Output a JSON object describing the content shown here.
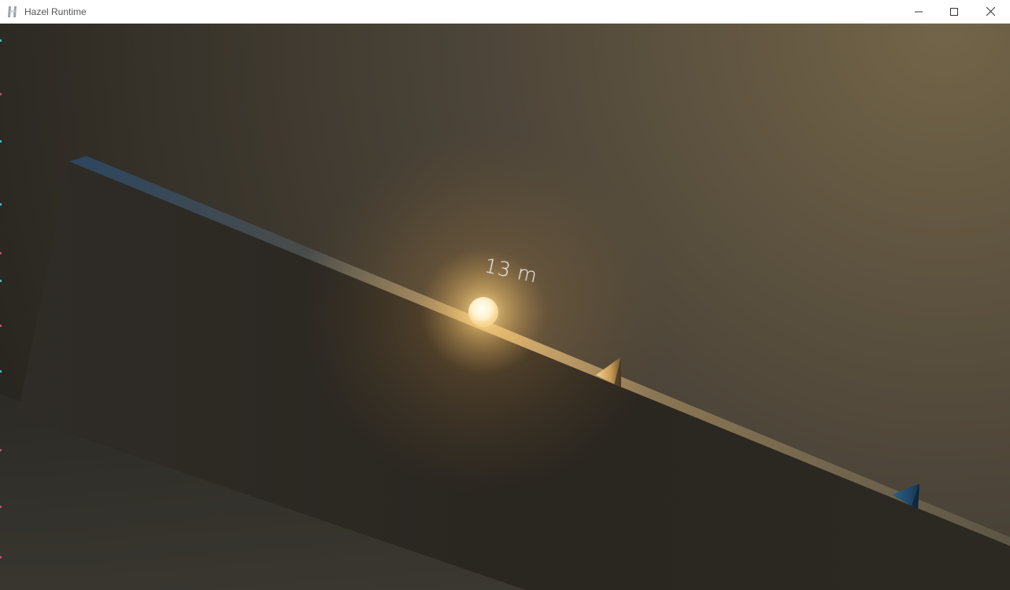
{
  "window": {
    "title": "Hazel Runtime",
    "app_icon": "hazel-logo-icon",
    "controls": [
      "minimize-icon",
      "maximize-icon",
      "close-icon"
    ]
  },
  "scene": {
    "distance_label": "13 m",
    "objects": [
      "tilted-platform",
      "glowing-ball",
      "orange-cone-spike",
      "blue-cone-spike"
    ],
    "colors": {
      "sky_warm": "#6e6246",
      "sky_dark": "#2b2a26",
      "platform_face": "#2a2620",
      "glow": "#ffd27a"
    }
  }
}
